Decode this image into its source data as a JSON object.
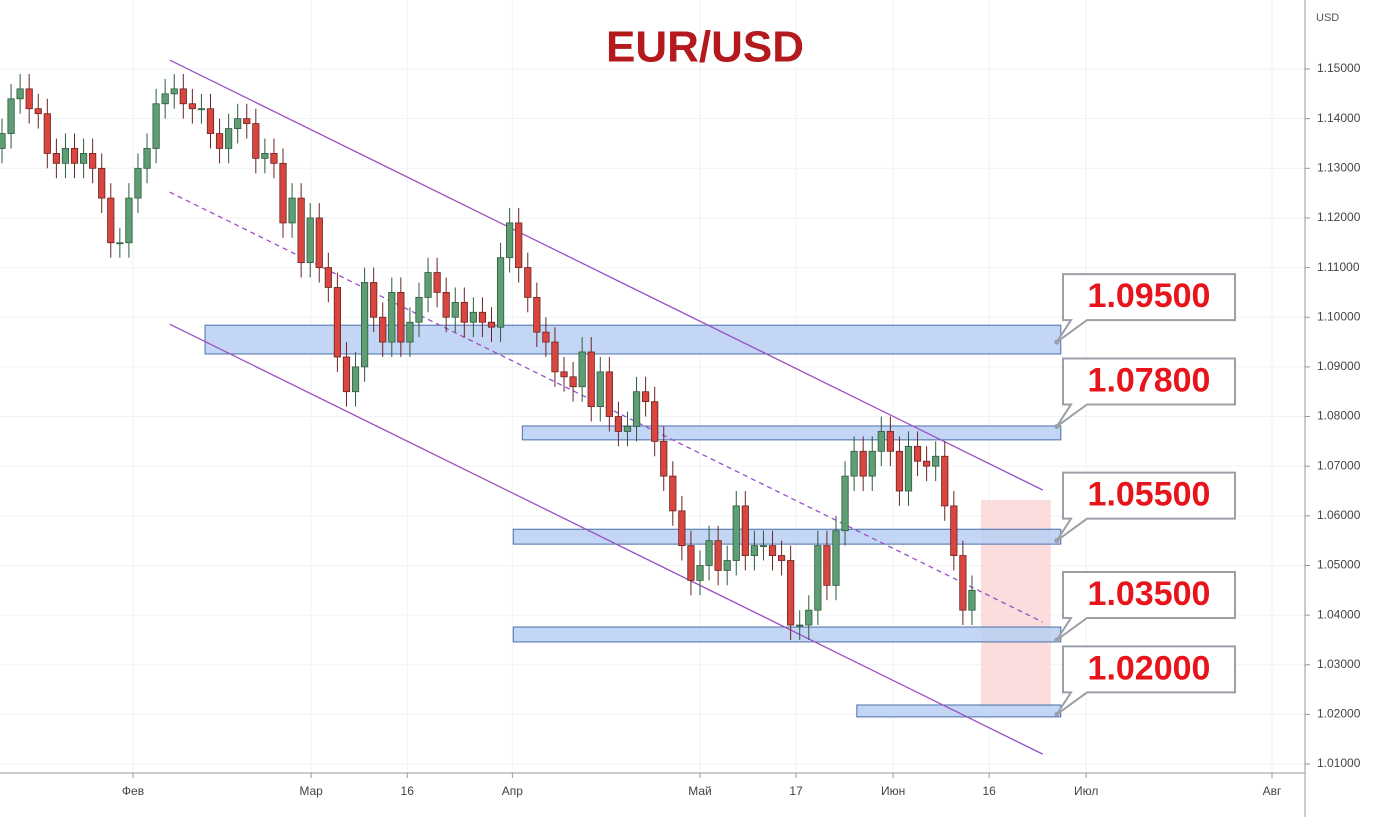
{
  "chart_data": {
    "type": "candlestick",
    "title": "EUR/USD",
    "y_label": "USD",
    "open": [
      1.134,
      1.137,
      1.144,
      1.146,
      1.142,
      1.141,
      1.133,
      1.131,
      1.134,
      1.131,
      1.133,
      1.13,
      1.124,
      1.115,
      1.115,
      1.124,
      1.13,
      1.134,
      1.143,
      1.145,
      1.146,
      1.143,
      1.142,
      1.142,
      1.137,
      1.134,
      1.138,
      1.14,
      1.139,
      1.132,
      1.133,
      1.131,
      1.119,
      1.124,
      1.111,
      1.12,
      1.11,
      1.106,
      1.092,
      1.085,
      1.09,
      1.107,
      1.1,
      1.095,
      1.105,
      1.095,
      1.099,
      1.104,
      1.109,
      1.105,
      1.1,
      1.103,
      1.099,
      1.101,
      1.099,
      1.098,
      1.112,
      1.119,
      1.11,
      1.104,
      1.097,
      1.095,
      1.089,
      1.088,
      1.086,
      1.093,
      1.082,
      1.089,
      1.08,
      1.077,
      1.078,
      1.085,
      1.083,
      1.075,
      1.068,
      1.061,
      1.054,
      1.047,
      1.05,
      1.055,
      1.049,
      1.051,
      1.062,
      1.052,
      1.054,
      1.054,
      1.052,
      1.051,
      1.038,
      1.038,
      1.041,
      1.054,
      1.046,
      1.057,
      1.068,
      1.073,
      1.068,
      1.073,
      1.077,
      1.073,
      1.065,
      1.074,
      1.071,
      1.07,
      1.072,
      1.062,
      1.052,
      1.041
    ],
    "high": [
      1.14,
      1.147,
      1.149,
      1.149,
      1.145,
      1.144,
      1.136,
      1.137,
      1.137,
      1.136,
      1.136,
      1.133,
      1.127,
      1.118,
      1.127,
      1.133,
      1.137,
      1.146,
      1.148,
      1.149,
      1.149,
      1.146,
      1.145,
      1.145,
      1.14,
      1.141,
      1.143,
      1.143,
      1.142,
      1.136,
      1.136,
      1.134,
      1.127,
      1.127,
      1.123,
      1.123,
      1.113,
      1.109,
      1.095,
      1.093,
      1.11,
      1.11,
      1.103,
      1.108,
      1.108,
      1.102,
      1.107,
      1.112,
      1.112,
      1.108,
      1.106,
      1.106,
      1.104,
      1.104,
      1.102,
      1.115,
      1.122,
      1.122,
      1.113,
      1.107,
      1.1,
      1.098,
      1.092,
      1.091,
      1.096,
      1.096,
      1.092,
      1.092,
      1.083,
      1.081,
      1.088,
      1.088,
      1.086,
      1.078,
      1.071,
      1.064,
      1.057,
      1.053,
      1.058,
      1.058,
      1.054,
      1.065,
      1.065,
      1.057,
      1.057,
      1.057,
      1.055,
      1.054,
      1.041,
      1.044,
      1.057,
      1.057,
      1.06,
      1.071,
      1.076,
      1.076,
      1.076,
      1.08,
      1.08,
      1.076,
      1.077,
      1.077,
      1.074,
      1.075,
      1.075,
      1.065,
      1.055,
      1.048
    ],
    "low": [
      1.131,
      1.134,
      1.141,
      1.139,
      1.138,
      1.13,
      1.128,
      1.128,
      1.128,
      1.128,
      1.127,
      1.121,
      1.112,
      1.112,
      1.112,
      1.121,
      1.127,
      1.131,
      1.14,
      1.142,
      1.14,
      1.139,
      1.139,
      1.134,
      1.131,
      1.131,
      1.135,
      1.136,
      1.129,
      1.129,
      1.128,
      1.116,
      1.116,
      1.108,
      1.108,
      1.107,
      1.103,
      1.089,
      1.082,
      1.082,
      1.087,
      1.097,
      1.092,
      1.092,
      1.092,
      1.092,
      1.096,
      1.101,
      1.102,
      1.097,
      1.097,
      1.096,
      1.096,
      1.096,
      1.095,
      1.095,
      1.109,
      1.107,
      1.101,
      1.094,
      1.092,
      1.086,
      1.085,
      1.083,
      1.083,
      1.079,
      1.079,
      1.077,
      1.074,
      1.074,
      1.075,
      1.08,
      1.072,
      1.065,
      1.058,
      1.051,
      1.044,
      1.044,
      1.047,
      1.046,
      1.046,
      1.048,
      1.049,
      1.049,
      1.051,
      1.049,
      1.048,
      1.035,
      1.035,
      1.035,
      1.038,
      1.043,
      1.043,
      1.054,
      1.065,
      1.065,
      1.065,
      1.07,
      1.07,
      1.062,
      1.062,
      1.068,
      1.067,
      1.067,
      1.059,
      1.049,
      1.038,
      1.038
    ],
    "close": [
      1.137,
      1.144,
      1.146,
      1.142,
      1.141,
      1.133,
      1.131,
      1.134,
      1.131,
      1.133,
      1.13,
      1.124,
      1.115,
      1.115,
      1.124,
      1.13,
      1.134,
      1.143,
      1.145,
      1.146,
      1.143,
      1.142,
      1.142,
      1.137,
      1.134,
      1.138,
      1.14,
      1.139,
      1.132,
      1.133,
      1.131,
      1.119,
      1.124,
      1.111,
      1.12,
      1.11,
      1.106,
      1.092,
      1.085,
      1.09,
      1.107,
      1.1,
      1.095,
      1.105,
      1.095,
      1.099,
      1.104,
      1.109,
      1.105,
      1.1,
      1.103,
      1.099,
      1.101,
      1.099,
      1.098,
      1.112,
      1.119,
      1.11,
      1.104,
      1.097,
      1.095,
      1.089,
      1.088,
      1.086,
      1.093,
      1.082,
      1.089,
      1.08,
      1.077,
      1.078,
      1.085,
      1.083,
      1.075,
      1.068,
      1.061,
      1.054,
      1.047,
      1.05,
      1.055,
      1.049,
      1.051,
      1.062,
      1.052,
      1.054,
      1.054,
      1.052,
      1.051,
      1.038,
      1.038,
      1.041,
      1.054,
      1.046,
      1.057,
      1.068,
      1.073,
      1.068,
      1.073,
      1.077,
      1.073,
      1.065,
      1.074,
      1.071,
      1.07,
      1.072,
      1.062,
      1.052,
      1.041,
      1.045
    ],
    "up_color": "#5e9e74",
    "down_color": "#d9463f",
    "xlim": [
      -0.22,
      143.74
    ],
    "xticks": [
      {
        "value": 14.45,
        "label": "Фев"
      },
      {
        "value": 34.1,
        "label": "Мар"
      },
      {
        "value": 44.7,
        "label": "16"
      },
      {
        "value": 56.3,
        "label": "Апр"
      },
      {
        "value": 77.0,
        "label": "Май"
      },
      {
        "value": 87.6,
        "label": "17"
      },
      {
        "value": 98.3,
        "label": "Июн"
      },
      {
        "value": 108.9,
        "label": "16"
      },
      {
        "value": 119.6,
        "label": "Июл"
      },
      {
        "value": 140.1,
        "label": "Авг"
      }
    ],
    "ylim": [
      1.0082,
      1.1639
    ],
    "yticks": [
      {
        "value": 1.01,
        "label": "1.01000"
      },
      {
        "value": 1.02,
        "label": "1.02000"
      },
      {
        "value": 1.03,
        "label": "1.03000"
      },
      {
        "value": 1.04,
        "label": "1.04000"
      },
      {
        "value": 1.05,
        "label": "1.05000"
      },
      {
        "value": 1.06,
        "label": "1.06000"
      },
      {
        "value": 1.07,
        "label": "1.07000"
      },
      {
        "value": 1.08,
        "label": "1.08000"
      },
      {
        "value": 1.09,
        "label": "1.09000"
      },
      {
        "value": 1.1,
        "label": "1.10000"
      },
      {
        "value": 1.11,
        "label": "1.11000"
      },
      {
        "value": 1.12,
        "label": "1.12000"
      },
      {
        "value": 1.13,
        "label": "1.13000"
      },
      {
        "value": 1.14,
        "label": "1.14000"
      },
      {
        "value": 1.15,
        "label": "1.15000"
      }
    ],
    "grid": true,
    "channel": {
      "x": [
        18.5,
        114.8
      ],
      "upper": [
        1.1518,
        1.0652
      ],
      "middle": [
        1.1252,
        1.0386
      ],
      "lower": [
        1.0986,
        1.012
      ],
      "color": "#9b4fc4"
    },
    "zones": {
      "start": [
        22.4,
        57.4,
        56.4,
        56.4,
        94.3
      ],
      "end": [
        116.8,
        116.8,
        116.8,
        116.8,
        116.8
      ],
      "high": [
        1.0984,
        1.0781,
        1.0573,
        1.0376,
        1.0219
      ],
      "low": [
        1.0926,
        1.0753,
        1.0543,
        1.0346,
        1.0195
      ],
      "color": "#b9cff5"
    },
    "levels": {
      "values": [
        1.095,
        1.078,
        1.055,
        1.035,
        1.02
      ],
      "value_labels": [
        "1.09500",
        "1.07800",
        "1.05500",
        "1.03500",
        "1.02000"
      ],
      "color": "#e8141b"
    },
    "projection": {
      "x": [
        108.0,
        115.7
      ],
      "y": [
        1.0215,
        1.0632
      ],
      "color": "#fbd5d5"
    }
  }
}
